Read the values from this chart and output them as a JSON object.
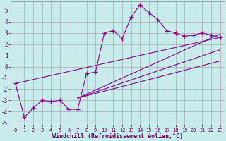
{
  "xlabel": "Windchill (Refroidissement éolien,°C)",
  "bg_color": "#c8ecec",
  "grid_color": "#aaaaaa",
  "line_color": "#880088",
  "ylim": [
    -5.2,
    5.8
  ],
  "xlim": [
    -0.5,
    23.5
  ],
  "yticks": [
    -5,
    -4,
    -3,
    -2,
    -1,
    0,
    1,
    2,
    3,
    4,
    5
  ],
  "xticks": [
    0,
    1,
    2,
    3,
    4,
    5,
    6,
    7,
    8,
    9,
    10,
    11,
    12,
    13,
    14,
    15,
    16,
    17,
    18,
    19,
    20,
    21,
    22,
    23
  ],
  "main_x": [
    0,
    1,
    2,
    3,
    4,
    5,
    6,
    7,
    8,
    9,
    10,
    11,
    12,
    13,
    14,
    15,
    16,
    17,
    18,
    19,
    20,
    21,
    22,
    23
  ],
  "main_y": [
    -1.5,
    -4.5,
    -3.7,
    -3.0,
    -3.1,
    -3.0,
    -3.8,
    -3.8,
    -0.6,
    -0.5,
    3.0,
    3.2,
    2.5,
    4.4,
    5.5,
    4.8,
    4.2,
    3.2,
    3.0,
    2.7,
    2.8,
    3.0,
    2.8,
    2.6
  ],
  "straight_lines": [
    {
      "x": [
        0,
        23
      ],
      "y": [
        -1.5,
        2.6
      ]
    },
    {
      "x": [
        7,
        23
      ],
      "y": [
        -2.8,
        2.9
      ]
    },
    {
      "x": [
        7,
        23
      ],
      "y": [
        -2.8,
        1.5
      ]
    },
    {
      "x": [
        7,
        23
      ],
      "y": [
        -2.8,
        0.5
      ]
    }
  ]
}
